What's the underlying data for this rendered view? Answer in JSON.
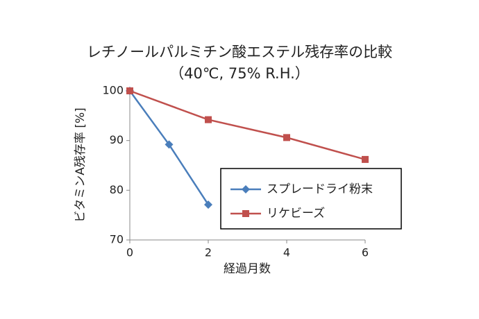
{
  "chart_data": {
    "type": "line",
    "title": "レチノールパルミチン酸エステル残存率の比較",
    "subtitle": "（40℃, 75% R.H.）",
    "x_label": "経過月数",
    "y_label": "ビタミンA残存率 [%]",
    "xlim": [
      0,
      6
    ],
    "xticks": [
      0,
      2,
      4,
      6
    ],
    "ylim": [
      70,
      100
    ],
    "yticks": [
      70,
      80,
      90,
      100
    ],
    "grid": false,
    "series": [
      {
        "name": "スプレードライ粉末",
        "color": "#4a7ebb",
        "marker": "diamond",
        "x": [
          0,
          1,
          2
        ],
        "values": [
          100,
          89.2,
          77.1
        ]
      },
      {
        "name": "リケビーズ",
        "color": "#c0504d",
        "marker": "square",
        "x": [
          0,
          2,
          4,
          6
        ],
        "values": [
          100,
          94.2,
          90.6,
          86.2
        ]
      }
    ]
  }
}
